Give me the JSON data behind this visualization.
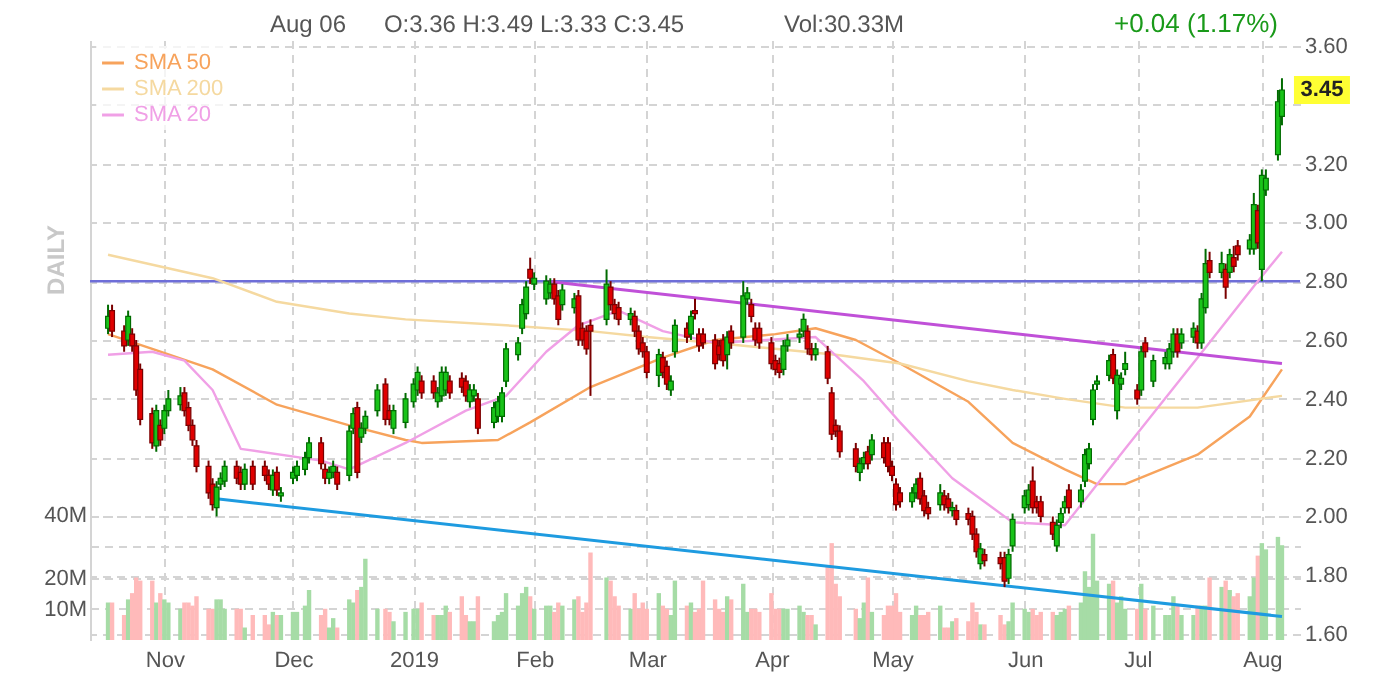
{
  "chart_data": {
    "type": "candlestick",
    "x": [
      "2018-10-18",
      "2018-10-19",
      "2018-10-22",
      "2018-10-23",
      "2018-10-24",
      "2018-10-25",
      "2018-10-26",
      "2018-10-29",
      "2018-10-30",
      "2018-10-31",
      "2018-11-01",
      "2018-11-02",
      "2018-11-05",
      "2018-11-06",
      "2018-11-07",
      "2018-11-08",
      "2018-11-09",
      "2018-11-12",
      "2018-11-13",
      "2018-11-14",
      "2018-11-15",
      "2018-11-16",
      "2018-11-19",
      "2018-11-20",
      "2018-11-21",
      "2018-11-23",
      "2018-11-26",
      "2018-11-27",
      "2018-11-28",
      "2018-11-29",
      "2018-11-30",
      "2018-12-03",
      "2018-12-04",
      "2018-12-06",
      "2018-12-07",
      "2018-12-10",
      "2018-12-11",
      "2018-12-12",
      "2018-12-13",
      "2018-12-14",
      "2018-12-17",
      "2018-12-18",
      "2018-12-19",
      "2018-12-20",
      "2018-12-21",
      "2018-12-24",
      "2018-12-26",
      "2018-12-27",
      "2018-12-28",
      "2018-12-31",
      "2019-01-02",
      "2019-01-03",
      "2019-01-04",
      "2019-01-07",
      "2019-01-08",
      "2019-01-09",
      "2019-01-10",
      "2019-01-11",
      "2019-01-14",
      "2019-01-15",
      "2019-01-16",
      "2019-01-17",
      "2019-01-18",
      "2019-01-22",
      "2019-01-23",
      "2019-01-24",
      "2019-01-25",
      "2019-01-28",
      "2019-01-29",
      "2019-01-30",
      "2019-01-31",
      "2019-02-01",
      "2019-02-04",
      "2019-02-05",
      "2019-02-06",
      "2019-02-07",
      "2019-02-08",
      "2019-02-11",
      "2019-02-12",
      "2019-02-13",
      "2019-02-14",
      "2019-02-15",
      "2019-02-19",
      "2019-02-20",
      "2019-02-21",
      "2019-02-22",
      "2019-02-25",
      "2019-02-26",
      "2019-02-27",
      "2019-02-28",
      "2019-03-01",
      "2019-03-04",
      "2019-03-05",
      "2019-03-06",
      "2019-03-07",
      "2019-03-08",
      "2019-03-11",
      "2019-03-12",
      "2019-03-13",
      "2019-03-14",
      "2019-03-15",
      "2019-03-18",
      "2019-03-19",
      "2019-03-20",
      "2019-03-21",
      "2019-03-22",
      "2019-03-25",
      "2019-03-26",
      "2019-03-27",
      "2019-03-28",
      "2019-03-29",
      "2019-04-01",
      "2019-04-02",
      "2019-04-03",
      "2019-04-04",
      "2019-04-05",
      "2019-04-08",
      "2019-04-09",
      "2019-04-10",
      "2019-04-11",
      "2019-04-12",
      "2019-04-15",
      "2019-04-16",
      "2019-04-17",
      "2019-04-18",
      "2019-04-22",
      "2019-04-23",
      "2019-04-24",
      "2019-04-25",
      "2019-04-26",
      "2019-04-29",
      "2019-04-30",
      "2019-05-01",
      "2019-05-02",
      "2019-05-03",
      "2019-05-06",
      "2019-05-07",
      "2019-05-08",
      "2019-05-09",
      "2019-05-10",
      "2019-05-13",
      "2019-05-14",
      "2019-05-15",
      "2019-05-16",
      "2019-05-17",
      "2019-05-20",
      "2019-05-21",
      "2019-05-22",
      "2019-05-23",
      "2019-05-24",
      "2019-05-28",
      "2019-05-29",
      "2019-05-30",
      "2019-05-31",
      "2019-06-03",
      "2019-06-04",
      "2019-06-05",
      "2019-06-06",
      "2019-06-07",
      "2019-06-10",
      "2019-06-11",
      "2019-06-12",
      "2019-06-13",
      "2019-06-14",
      "2019-06-17",
      "2019-06-18",
      "2019-06-19",
      "2019-06-20",
      "2019-06-21",
      "2019-06-24",
      "2019-06-25",
      "2019-06-26",
      "2019-06-27",
      "2019-06-28",
      "2019-07-01",
      "2019-07-02",
      "2019-07-03",
      "2019-07-05",
      "2019-07-08",
      "2019-07-09",
      "2019-07-10",
      "2019-07-11",
      "2019-07-12",
      "2019-07-15",
      "2019-07-16",
      "2019-07-17",
      "2019-07-18",
      "2019-07-19",
      "2019-07-22",
      "2019-07-23",
      "2019-07-24",
      "2019-07-25",
      "2019-07-26",
      "2019-07-29",
      "2019-07-30",
      "2019-07-31",
      "2019-08-01",
      "2019-08-02",
      "2019-08-05",
      "2019-08-06"
    ],
    "ohlc": [
      [
        2.64,
        2.72,
        2.62,
        2.68
      ],
      [
        2.7,
        2.72,
        2.61,
        2.63
      ],
      [
        2.63,
        2.65,
        2.56,
        2.58
      ],
      [
        2.6,
        2.7,
        2.58,
        2.68
      ],
      [
        2.62,
        2.64,
        2.56,
        2.58
      ],
      [
        2.58,
        2.6,
        2.41,
        2.43
      ],
      [
        2.5,
        2.52,
        2.31,
        2.33
      ],
      [
        2.35,
        2.37,
        2.23,
        2.25
      ],
      [
        2.24,
        2.38,
        2.22,
        2.36
      ],
      [
        2.31,
        2.33,
        2.24,
        2.26
      ],
      [
        2.3,
        2.38,
        2.28,
        2.36
      ],
      [
        2.36,
        2.43,
        2.34,
        2.4
      ],
      [
        2.38,
        2.44,
        2.36,
        2.41
      ],
      [
        2.42,
        2.44,
        2.34,
        2.36
      ],
      [
        2.37,
        2.39,
        2.29,
        2.31
      ],
      [
        2.31,
        2.33,
        2.24,
        2.26
      ],
      [
        2.24,
        2.26,
        2.15,
        2.17
      ],
      [
        2.17,
        2.19,
        2.06,
        2.08
      ],
      [
        2.11,
        2.13,
        2.02,
        2.04
      ],
      [
        2.03,
        2.12,
        2.0,
        2.1
      ],
      [
        2.11,
        2.15,
        2.09,
        2.13
      ],
      [
        2.12,
        2.19,
        2.1,
        2.17
      ],
      [
        2.17,
        2.19,
        2.11,
        2.13
      ],
      [
        2.15,
        2.17,
        2.09,
        2.11
      ],
      [
        2.11,
        2.18,
        2.09,
        2.16
      ],
      [
        2.17,
        2.19,
        2.09,
        2.11
      ],
      [
        2.17,
        2.19,
        2.12,
        2.14
      ],
      [
        2.14,
        2.16,
        2.09,
        2.11
      ],
      [
        2.09,
        2.16,
        2.07,
        2.14
      ],
      [
        2.15,
        2.17,
        2.07,
        2.09
      ],
      [
        2.07,
        2.1,
        2.05,
        2.08
      ],
      [
        2.13,
        2.17,
        2.11,
        2.15
      ],
      [
        2.14,
        2.19,
        2.12,
        2.17
      ],
      [
        2.16,
        2.22,
        2.14,
        2.2
      ],
      [
        2.2,
        2.27,
        2.18,
        2.25
      ],
      [
        2.25,
        2.27,
        2.16,
        2.18
      ],
      [
        2.16,
        2.18,
        2.11,
        2.13
      ],
      [
        2.13,
        2.17,
        2.11,
        2.15
      ],
      [
        2.15,
        2.19,
        2.13,
        2.17
      ],
      [
        2.15,
        2.17,
        2.09,
        2.11
      ],
      [
        2.14,
        2.31,
        2.12,
        2.29
      ],
      [
        2.3,
        2.37,
        2.28,
        2.35
      ],
      [
        2.37,
        2.39,
        2.13,
        2.15
      ],
      [
        2.27,
        2.32,
        2.25,
        2.3
      ],
      [
        2.3,
        2.36,
        2.28,
        2.34
      ],
      [
        2.36,
        2.45,
        2.34,
        2.43
      ],
      [
        2.45,
        2.47,
        2.31,
        2.33
      ],
      [
        2.36,
        2.38,
        2.31,
        2.33
      ],
      [
        2.3,
        2.38,
        2.28,
        2.36
      ],
      [
        2.32,
        2.42,
        2.3,
        2.4
      ],
      [
        2.39,
        2.47,
        2.37,
        2.45
      ],
      [
        2.43,
        2.51,
        2.41,
        2.49
      ],
      [
        2.46,
        2.48,
        2.4,
        2.42
      ],
      [
        2.46,
        2.48,
        2.4,
        2.42
      ],
      [
        2.39,
        2.44,
        2.37,
        2.42
      ],
      [
        2.41,
        2.51,
        2.39,
        2.49
      ],
      [
        2.43,
        2.51,
        2.41,
        2.49
      ],
      [
        2.46,
        2.48,
        2.4,
        2.42
      ],
      [
        2.47,
        2.49,
        2.42,
        2.44
      ],
      [
        2.46,
        2.48,
        2.39,
        2.41
      ],
      [
        2.39,
        2.45,
        2.37,
        2.43
      ],
      [
        2.41,
        2.45,
        2.39,
        2.43
      ],
      [
        2.4,
        2.42,
        2.28,
        2.3
      ],
      [
        2.32,
        2.39,
        2.3,
        2.37
      ],
      [
        2.34,
        2.41,
        2.32,
        2.39
      ],
      [
        2.34,
        2.44,
        2.32,
        2.42
      ],
      [
        2.46,
        2.59,
        2.44,
        2.57
      ],
      [
        2.55,
        2.61,
        2.53,
        2.59
      ],
      [
        2.64,
        2.74,
        2.62,
        2.72
      ],
      [
        2.69,
        2.8,
        2.67,
        2.78
      ],
      [
        2.84,
        2.88,
        2.79,
        2.81
      ],
      [
        2.79,
        2.83,
        2.77,
        2.81
      ],
      [
        2.74,
        2.82,
        2.72,
        2.8
      ],
      [
        2.76,
        2.81,
        2.74,
        2.79
      ],
      [
        2.79,
        2.81,
        2.72,
        2.74
      ],
      [
        2.75,
        2.77,
        2.65,
        2.67
      ],
      [
        2.72,
        2.79,
        2.7,
        2.77
      ],
      [
        2.71,
        2.76,
        2.69,
        2.74
      ],
      [
        2.75,
        2.77,
        2.58,
        2.6
      ],
      [
        2.64,
        2.66,
        2.58,
        2.6
      ],
      [
        2.63,
        2.65,
        2.55,
        2.57
      ],
      [
        2.65,
        2.67,
        2.41,
        2.63
      ],
      [
        2.67,
        2.84,
        2.65,
        2.79
      ],
      [
        2.78,
        2.8,
        2.7,
        2.72
      ],
      [
        2.72,
        2.74,
        2.67,
        2.69
      ],
      [
        2.71,
        2.73,
        2.65,
        2.67
      ],
      [
        2.67,
        2.71,
        2.65,
        2.69
      ],
      [
        2.68,
        2.7,
        2.61,
        2.63
      ],
      [
        2.63,
        2.65,
        2.55,
        2.57
      ],
      [
        2.59,
        2.61,
        2.54,
        2.56
      ],
      [
        2.56,
        2.58,
        2.47,
        2.49
      ],
      [
        2.48,
        2.57,
        2.44,
        2.55
      ],
      [
        2.54,
        2.56,
        2.47,
        2.49
      ],
      [
        2.51,
        2.53,
        2.43,
        2.45
      ],
      [
        2.43,
        2.48,
        2.41,
        2.46
      ],
      [
        2.56,
        2.67,
        2.54,
        2.65
      ],
      [
        2.64,
        2.66,
        2.59,
        2.61
      ],
      [
        2.62,
        2.7,
        2.6,
        2.68
      ],
      [
        2.7,
        2.74,
        2.67,
        2.69
      ],
      [
        2.62,
        2.64,
        2.56,
        2.58
      ],
      [
        2.62,
        2.64,
        2.57,
        2.59
      ],
      [
        2.6,
        2.62,
        2.5,
        2.52
      ],
      [
        2.58,
        2.6,
        2.53,
        2.55
      ],
      [
        2.6,
        2.62,
        2.51,
        2.53
      ],
      [
        2.55,
        2.63,
        2.5,
        2.61
      ],
      [
        2.63,
        2.65,
        2.57,
        2.59
      ],
      [
        2.61,
        2.8,
        2.59,
        2.75
      ],
      [
        2.74,
        2.78,
        2.72,
        2.76
      ],
      [
        2.72,
        2.74,
        2.66,
        2.68
      ],
      [
        2.64,
        2.66,
        2.58,
        2.6
      ],
      [
        2.64,
        2.66,
        2.57,
        2.59
      ],
      [
        2.59,
        2.61,
        2.5,
        2.52
      ],
      [
        2.53,
        2.55,
        2.48,
        2.5
      ],
      [
        2.52,
        2.54,
        2.47,
        2.49
      ],
      [
        2.5,
        2.6,
        2.48,
        2.58
      ],
      [
        2.58,
        2.62,
        2.56,
        2.6
      ],
      [
        2.61,
        2.64,
        2.59,
        2.62
      ],
      [
        2.63,
        2.69,
        2.61,
        2.67
      ],
      [
        2.63,
        2.65,
        2.55,
        2.57
      ],
      [
        2.57,
        2.59,
        2.53,
        2.55
      ],
      [
        2.55,
        2.59,
        2.53,
        2.57
      ],
      [
        2.56,
        2.58,
        2.45,
        2.47
      ],
      [
        2.42,
        2.44,
        2.26,
        2.28
      ],
      [
        2.31,
        2.33,
        2.27,
        2.29
      ],
      [
        2.29,
        2.31,
        2.2,
        2.22
      ],
      [
        2.23,
        2.25,
        2.15,
        2.17
      ],
      [
        2.15,
        2.2,
        2.12,
        2.18
      ],
      [
        2.18,
        2.22,
        2.16,
        2.2
      ],
      [
        2.22,
        2.24,
        2.16,
        2.18
      ],
      [
        2.21,
        2.28,
        2.19,
        2.26
      ],
      [
        2.25,
        2.27,
        2.18,
        2.2
      ],
      [
        2.25,
        2.27,
        2.15,
        2.17
      ],
      [
        2.17,
        2.19,
        2.12,
        2.14
      ],
      [
        2.11,
        2.13,
        2.02,
        2.04
      ],
      [
        2.08,
        2.1,
        2.03,
        2.05
      ],
      [
        2.05,
        2.1,
        2.03,
        2.08
      ],
      [
        2.08,
        2.13,
        2.06,
        2.11
      ],
      [
        2.13,
        2.15,
        2.04,
        2.06
      ],
      [
        2.07,
        2.09,
        2.0,
        2.02
      ],
      [
        2.03,
        2.05,
        1.99,
        2.01
      ],
      [
        2.04,
        2.11,
        2.02,
        2.08
      ],
      [
        2.07,
        2.09,
        2.02,
        2.04
      ],
      [
        2.06,
        2.08,
        2.01,
        2.03
      ],
      [
        2.02,
        2.05,
        2.0,
        2.03
      ],
      [
        2.02,
        2.04,
        1.97,
        1.99
      ],
      [
        2.01,
        2.03,
        1.97,
        1.99
      ],
      [
        2.0,
        2.02,
        1.92,
        1.94
      ],
      [
        1.94,
        1.96,
        1.86,
        1.88
      ],
      [
        1.84,
        1.91,
        1.82,
        1.89
      ],
      [
        1.87,
        1.89,
        1.83,
        1.85
      ],
      [
        1.86,
        1.88,
        1.82,
        1.84
      ],
      [
        1.86,
        1.88,
        1.76,
        1.78
      ],
      [
        1.79,
        1.89,
        1.77,
        1.87
      ],
      [
        1.9,
        2.01,
        1.88,
        1.99
      ],
      [
        2.03,
        2.09,
        2.01,
        2.07
      ],
      [
        2.04,
        2.11,
        2.02,
        2.09
      ],
      [
        2.12,
        2.17,
        2.01,
        2.03
      ],
      [
        2.05,
        2.07,
        2.01,
        2.03
      ],
      [
        2.05,
        2.07,
        1.98,
        2.0
      ],
      [
        1.98,
        2.0,
        1.92,
        1.94
      ],
      [
        1.9,
        1.99,
        1.88,
        1.97
      ],
      [
        1.98,
        2.03,
        1.96,
        2.01
      ],
      [
        2.03,
        2.07,
        2.01,
        2.05
      ],
      [
        2.09,
        2.11,
        2.01,
        2.03
      ],
      [
        2.05,
        2.11,
        2.03,
        2.09
      ],
      [
        2.12,
        2.23,
        2.1,
        2.21
      ],
      [
        2.18,
        2.25,
        2.16,
        2.23
      ],
      [
        2.33,
        2.45,
        2.31,
        2.43
      ],
      [
        2.45,
        2.48,
        2.43,
        2.46
      ],
      [
        2.48,
        2.55,
        2.46,
        2.53
      ],
      [
        2.55,
        2.57,
        2.45,
        2.47
      ],
      [
        2.36,
        2.5,
        2.33,
        2.48
      ],
      [
        2.45,
        2.49,
        2.43,
        2.47
      ],
      [
        2.5,
        2.56,
        2.48,
        2.52
      ],
      [
        2.43,
        2.45,
        2.38,
        2.4
      ],
      [
        2.43,
        2.58,
        2.41,
        2.56
      ],
      [
        2.59,
        2.61,
        2.54,
        2.56
      ],
      [
        2.46,
        2.55,
        2.44,
        2.53
      ],
      [
        2.52,
        2.56,
        2.5,
        2.54
      ],
      [
        2.52,
        2.59,
        2.5,
        2.57
      ],
      [
        2.56,
        2.64,
        2.54,
        2.62
      ],
      [
        2.62,
        2.64,
        2.54,
        2.56
      ],
      [
        2.59,
        2.64,
        2.57,
        2.62
      ],
      [
        2.61,
        2.66,
        2.59,
        2.64
      ],
      [
        2.63,
        2.65,
        2.57,
        2.59
      ],
      [
        2.59,
        2.76,
        2.57,
        2.74
      ],
      [
        2.71,
        2.91,
        2.69,
        2.86
      ],
      [
        2.87,
        2.9,
        2.81,
        2.83
      ],
      [
        2.83,
        2.9,
        2.81,
        2.86
      ],
      [
        2.84,
        2.86,
        2.74,
        2.78
      ],
      [
        2.83,
        2.91,
        2.81,
        2.89
      ],
      [
        2.88,
        2.92,
        2.83,
        2.85
      ],
      [
        2.92,
        2.94,
        2.87,
        2.89
      ],
      [
        2.91,
        2.96,
        2.89,
        2.94
      ],
      [
        2.91,
        3.1,
        2.89,
        3.06
      ],
      [
        3.04,
        3.06,
        2.91,
        2.93
      ],
      [
        2.84,
        3.18,
        2.8,
        3.16
      ],
      [
        3.11,
        3.18,
        3.09,
        3.15
      ],
      [
        3.23,
        3.45,
        3.21,
        3.41
      ],
      [
        3.36,
        3.49,
        3.33,
        3.45
      ]
    ],
    "series": [
      {
        "type": "bar",
        "axis": "y2",
        "values": [
          12,
          12,
          8,
          13,
          15,
          20,
          19,
          19,
          12,
          15,
          13,
          12,
          10,
          12,
          12,
          11,
          14,
          10,
          10,
          13,
          13,
          10,
          10,
          10,
          4,
          8,
          8,
          5,
          9,
          8,
          8,
          9,
          9,
          11,
          16,
          8,
          10,
          4,
          7,
          4,
          13,
          12,
          16,
          17,
          26,
          10,
          10,
          9,
          6,
          9,
          10,
          10,
          12,
          8,
          8,
          8,
          11,
          9,
          14,
          8,
          6,
          6,
          14,
          6,
          8,
          9,
          15,
          11,
          15,
          17,
          14,
          10,
          11,
          11,
          9,
          12,
          11,
          13,
          14,
          9,
          12,
          28,
          20,
          19,
          14,
          11,
          10,
          15,
          10,
          12,
          10,
          15,
          11,
          10,
          8,
          19,
          11,
          12,
          9,
          10,
          19,
          13,
          10,
          9,
          14,
          13,
          18,
          9,
          10,
          10,
          9,
          15,
          10,
          10,
          10,
          10,
          11,
          9,
          8,
          8,
          5,
          24,
          31,
          18,
          14,
          10,
          7,
          12,
          20,
          9,
          8,
          11,
          11,
          15,
          9,
          8,
          11,
          8,
          8,
          9,
          11,
          4,
          4,
          6,
          7,
          6,
          12,
          9,
          5,
          5,
          8,
          5,
          6,
          12,
          10,
          9,
          10,
          8,
          9,
          9,
          8,
          9,
          10,
          11,
          12,
          22,
          17,
          34,
          19,
          18,
          19,
          12,
          14,
          10,
          10,
          18,
          10,
          11,
          8,
          8,
          14,
          11,
          8,
          8,
          11,
          11,
          11,
          20,
          17,
          19,
          16,
          14,
          15,
          14,
          20,
          27,
          31,
          29,
          33,
          30.33
        ],
        "colors": [
          "#a6dca6",
          "#ffbaba",
          "#ffbaba",
          "#a6dca6",
          "#ffbaba",
          "#ffbaba",
          "#ffbaba",
          "#ffbaba",
          "#a6dca6",
          "#ffbaba",
          "#a6dca6",
          "#a6dca6",
          "#a6dca6",
          "#ffbaba",
          "#ffbaba",
          "#ffbaba",
          "#ffbaba",
          "#ffbaba",
          "#ffbaba",
          "#a6dca6",
          "#a6dca6",
          "#a6dca6",
          "#ffbaba",
          "#ffbaba",
          "#a6dca6",
          "#ffbaba",
          "#ffbaba",
          "#ffbaba",
          "#a6dca6",
          "#ffbaba",
          "#a6dca6",
          "#a6dca6",
          "#a6dca6",
          "#a6dca6",
          "#a6dca6",
          "#ffbaba",
          "#ffbaba",
          "#a6dca6",
          "#a6dca6",
          "#ffbaba",
          "#a6dca6",
          "#a6dca6",
          "#ffbaba",
          "#a6dca6",
          "#a6dca6",
          "#a6dca6",
          "#ffbaba",
          "#ffbaba",
          "#a6dca6",
          "#a6dca6",
          "#a6dca6",
          "#a6dca6",
          "#ffbaba",
          "#ffbaba",
          "#a6dca6",
          "#a6dca6",
          "#a6dca6",
          "#ffbaba",
          "#ffbaba",
          "#ffbaba",
          "#a6dca6",
          "#a6dca6",
          "#ffbaba",
          "#a6dca6",
          "#a6dca6",
          "#a6dca6",
          "#a6dca6",
          "#a6dca6",
          "#a6dca6",
          "#a6dca6",
          "#ffbaba",
          "#a6dca6",
          "#a6dca6",
          "#a6dca6",
          "#ffbaba",
          "#ffbaba",
          "#a6dca6",
          "#a6dca6",
          "#ffbaba",
          "#ffbaba",
          "#ffbaba",
          "#ffbaba",
          "#a6dca6",
          "#ffbaba",
          "#ffbaba",
          "#ffbaba",
          "#a6dca6",
          "#ffbaba",
          "#ffbaba",
          "#ffbaba",
          "#ffbaba",
          "#a6dca6",
          "#ffbaba",
          "#ffbaba",
          "#a6dca6",
          "#a6dca6",
          "#ffbaba",
          "#a6dca6",
          "#ffbaba",
          "#ffbaba",
          "#ffbaba",
          "#ffbaba",
          "#ffbaba",
          "#ffbaba",
          "#a6dca6",
          "#ffbaba",
          "#a6dca6",
          "#a6dca6",
          "#ffbaba",
          "#ffbaba",
          "#ffbaba",
          "#ffbaba",
          "#ffbaba",
          "#ffbaba",
          "#a6dca6",
          "#a6dca6",
          "#a6dca6",
          "#a6dca6",
          "#ffbaba",
          "#ffbaba",
          "#a6dca6",
          "#ffbaba",
          "#ffbaba",
          "#ffbaba",
          "#ffbaba",
          "#ffbaba",
          "#a6dca6",
          "#a6dca6",
          "#ffbaba",
          "#a6dca6",
          "#ffbaba",
          "#ffbaba",
          "#ffbaba",
          "#ffbaba",
          "#ffbaba",
          "#a6dca6",
          "#a6dca6",
          "#ffbaba",
          "#ffbaba",
          "#ffbaba",
          "#a6dca6",
          "#ffbaba",
          "#ffbaba",
          "#a6dca6",
          "#ffbaba",
          "#ffbaba",
          "#ffbaba",
          "#ffbaba",
          "#a6dca6",
          "#ffbaba",
          "#ffbaba",
          "#ffbaba",
          "#a6dca6",
          "#a6dca6",
          "#a6dca6",
          "#a6dca6",
          "#ffbaba",
          "#ffbaba",
          "#ffbaba",
          "#ffbaba",
          "#a6dca6",
          "#a6dca6",
          "#a6dca6",
          "#ffbaba",
          "#a6dca6",
          "#a6dca6",
          "#a6dca6",
          "#a6dca6",
          "#a6dca6",
          "#a6dca6",
          "#ffbaba",
          "#a6dca6",
          "#a6dca6",
          "#a6dca6",
          "#ffbaba",
          "#a6dca6",
          "#ffbaba",
          "#a6dca6",
          "#a6dca6",
          "#a6dca6",
          "#a6dca6",
          "#ffbaba",
          "#a6dca6",
          "#a6dca6",
          "#ffbaba",
          "#a6dca6",
          "#a6dca6",
          "#ffbaba",
          "#a6dca6",
          "#ffbaba",
          "#a6dca6",
          "#ffbaba",
          "#ffbaba",
          "#a6dca6",
          "#a6dca6",
          "#ffbaba",
          "#a6dca6",
          "#a6dca6",
          "#a6dca6",
          "#a6dca6"
        ]
      },
      {
        "name": "SMA 50",
        "type": "line",
        "color": "#f7a35c",
        "x": [
          "2018-10-18",
          "2018-10-29",
          "2018-11-13",
          "2018-11-29",
          "2018-12-17",
          "2018-12-31",
          "2019-01-04",
          "2019-01-23",
          "2019-01-31",
          "2019-02-15",
          "2019-03-05",
          "2019-03-18",
          "2019-04-02",
          "2019-04-12",
          "2019-04-22",
          "2019-05-03",
          "2019-05-20",
          "2019-05-31",
          "2019-06-13",
          "2019-06-21",
          "2019-06-28",
          "2019-07-16",
          "2019-07-29",
          "2019-08-06"
        ],
        "values": [
          2.62,
          2.57,
          2.5,
          2.38,
          2.31,
          2.26,
          2.25,
          2.26,
          2.32,
          2.44,
          2.54,
          2.6,
          2.62,
          2.64,
          2.6,
          2.52,
          2.39,
          2.25,
          2.16,
          2.11,
          2.11,
          2.21,
          2.34,
          2.5
        ]
      },
      {
        "name": "SMA 200",
        "type": "line",
        "color": "#f5d9a0",
        "x": [
          "2018-10-18",
          "2018-10-31",
          "2018-11-13",
          "2018-11-29",
          "2018-12-17",
          "2018-12-31",
          "2019-01-25",
          "2019-02-15",
          "2019-03-01",
          "2019-03-18",
          "2019-04-17",
          "2019-05-03",
          "2019-05-20",
          "2019-05-31",
          "2019-06-13",
          "2019-06-28",
          "2019-07-16",
          "2019-08-06"
        ],
        "values": [
          2.89,
          2.85,
          2.81,
          2.73,
          2.69,
          2.67,
          2.65,
          2.63,
          2.61,
          2.59,
          2.55,
          2.52,
          2.46,
          2.43,
          2.4,
          2.37,
          2.37,
          2.41
        ]
      },
      {
        "name": "SMA 20",
        "type": "line",
        "color": "#f0a0e6",
        "x": [
          "2018-10-18",
          "2018-10-29",
          "2018-11-06",
          "2018-11-13",
          "2018-11-20",
          "2018-12-10",
          "2018-12-17",
          "2018-12-31",
          "2019-01-15",
          "2019-01-25",
          "2019-02-04",
          "2019-02-12",
          "2019-02-22",
          "2019-03-05",
          "2019-03-18",
          "2019-04-12",
          "2019-04-24",
          "2019-05-03",
          "2019-05-16",
          "2019-05-24",
          "2019-05-31",
          "2019-06-13",
          "2019-06-28",
          "2019-07-16",
          "2019-07-31",
          "2019-08-06"
        ],
        "values": [
          2.55,
          2.56,
          2.53,
          2.43,
          2.23,
          2.19,
          2.16,
          2.25,
          2.36,
          2.41,
          2.56,
          2.65,
          2.7,
          2.63,
          2.59,
          2.61,
          2.46,
          2.32,
          2.13,
          2.05,
          1.98,
          1.97,
          2.23,
          2.54,
          2.8,
          2.9
        ]
      },
      {
        "type": "line",
        "color": "#c050d8",
        "x": [
          "2019-02-04",
          "2019-08-06"
        ],
        "values": [
          2.8,
          2.52
        ]
      },
      {
        "type": "line",
        "color": "#1e9be0",
        "x": [
          "2018-11-14",
          "2019-08-06"
        ],
        "values": [
          2.06,
          1.66
        ]
      }
    ],
    "ref_lines": [
      {
        "axis": "y",
        "value": 2.8,
        "color": "#6e6ed8"
      }
    ],
    "xlim": [
      "2018-10-16",
      "2019-08-08"
    ],
    "xticks": [
      {
        "value": "2018-11-01",
        "label": "Nov"
      },
      {
        "value": "2018-12-03",
        "label": "Dec"
      },
      {
        "value": "2019-01-02",
        "label": "2019"
      },
      {
        "value": "2019-02-01",
        "label": "Feb"
      },
      {
        "value": "2019-03-01",
        "label": "Mar"
      },
      {
        "value": "2019-04-01",
        "label": "Apr"
      },
      {
        "value": "2019-05-01",
        "label": "May"
      },
      {
        "value": "2019-06-03",
        "label": "Jun"
      },
      {
        "value": "2019-07-01",
        "label": "Jul"
      },
      {
        "value": "2019-08-01",
        "label": "Aug"
      }
    ],
    "ylim": [
      1.58,
      3.62
    ],
    "yticks": [
      {
        "value": 1.6,
        "label": "1.60"
      },
      {
        "value": 1.8,
        "label": "1.80"
      },
      {
        "value": 2.0,
        "label": "2.00"
      },
      {
        "value": 2.2,
        "label": "2.20"
      },
      {
        "value": 2.4,
        "label": "2.40"
      },
      {
        "value": 2.6,
        "label": "2.60"
      },
      {
        "value": 2.8,
        "label": "2.80"
      },
      {
        "value": 3.0,
        "label": "3.00"
      },
      {
        "value": 3.2,
        "label": "3.20"
      },
      {
        "value": 3.4,
        "label": null
      },
      {
        "value": 3.6,
        "label": "3.60"
      }
    ],
    "y2lim": [
      0,
      192
    ],
    "y2ticks": [
      {
        "value": 10,
        "label": "10M"
      },
      {
        "value": 20,
        "label": "20M"
      },
      {
        "value": 30,
        "label": null
      },
      {
        "value": 40,
        "label": "40M"
      }
    ],
    "grid": true,
    "legend": "top left",
    "annotations": [
      "Aug 06",
      "O:3.36  H:3.49  L:3.33  C:3.45",
      "Vol:30.33M",
      "+0.04 (1.17%)",
      "DAILY",
      {
        "text": "3.45",
        "x": "2019-08-06",
        "y": 3.45
      }
    ]
  }
}
